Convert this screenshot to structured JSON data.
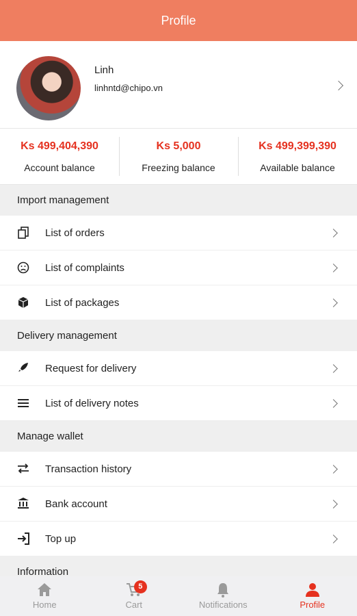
{
  "header": {
    "title": "Profile"
  },
  "profile": {
    "name": "Linh",
    "email": "linhntd@chipo.vn"
  },
  "balances": [
    {
      "amount": "Ks 499,404,390",
      "label": "Account balance"
    },
    {
      "amount": "Ks 5,000",
      "label": "Freezing balance"
    },
    {
      "amount": "Ks 499,399,390",
      "label": "Available balance"
    }
  ],
  "sections": [
    {
      "title": "Import management",
      "items": [
        "List of orders",
        "List of complaints",
        "List of packages"
      ]
    },
    {
      "title": "Delivery management",
      "items": [
        "Request for delivery",
        "List of delivery notes"
      ]
    },
    {
      "title": "Manage wallet",
      "items": [
        "Transaction history",
        "Bank account",
        "Top up"
      ]
    },
    {
      "title": "Information",
      "items": []
    }
  ],
  "nav": [
    {
      "label": "Home"
    },
    {
      "label": "Cart",
      "badge": "5"
    },
    {
      "label": "Notifications"
    },
    {
      "label": "Profile"
    }
  ]
}
